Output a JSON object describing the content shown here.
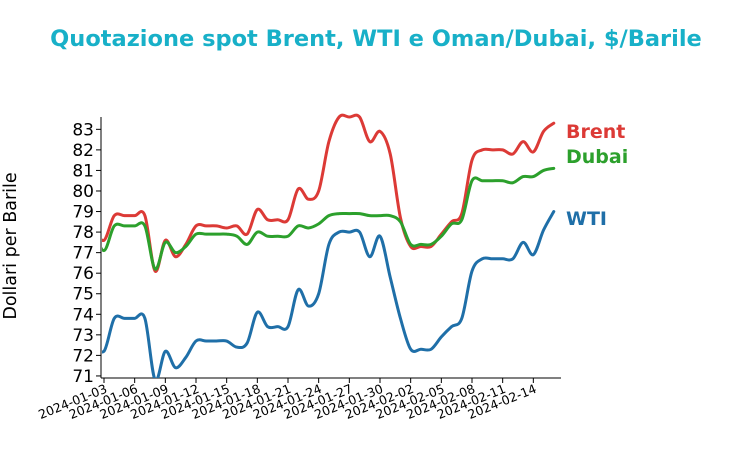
{
  "chart_data": {
    "type": "line",
    "title": "Quotazione spot Brent, WTI e Oman/Dubai, $/Barile",
    "xlabel": "",
    "ylabel": "Dollari per Barile",
    "ylim": [
      70.9,
      83.6
    ],
    "yticks": [
      71,
      72,
      73,
      74,
      75,
      76,
      77,
      78,
      79,
      80,
      81,
      82,
      83
    ],
    "xlim": [
      "2024-01-03",
      "2024-02-17"
    ],
    "xticks": [
      "2024-01-03",
      "2024-01-06",
      "2024-01-09",
      "2024-01-12",
      "2024-01-15",
      "2024-01-18",
      "2024-01-21",
      "2024-01-24",
      "2024-01-27",
      "2024-01-30",
      "2024-02-02",
      "2024-02-05",
      "2024-02-08",
      "2024-02-11",
      "2024-02-14"
    ],
    "grid": false,
    "legend": "inline labels at right end of each line",
    "series": [
      {
        "name": "Brent",
        "color": "#dc3a36",
        "points": [
          [
            "2024-01-02",
            78.2
          ],
          [
            "2024-01-03",
            77.6
          ],
          [
            "2024-01-04",
            78.8
          ],
          [
            "2024-01-05",
            78.8
          ],
          [
            "2024-01-06",
            78.8
          ],
          [
            "2024-01-07",
            78.8
          ],
          [
            "2024-01-08",
            76.1
          ],
          [
            "2024-01-09",
            77.6
          ],
          [
            "2024-01-10",
            76.8
          ],
          [
            "2024-01-11",
            77.4
          ],
          [
            "2024-01-12",
            78.3
          ],
          [
            "2024-01-13",
            78.3
          ],
          [
            "2024-01-14",
            78.3
          ],
          [
            "2024-01-15",
            78.2
          ],
          [
            "2024-01-16",
            78.3
          ],
          [
            "2024-01-17",
            77.9
          ],
          [
            "2024-01-18",
            79.1
          ],
          [
            "2024-01-19",
            78.6
          ],
          [
            "2024-01-20",
            78.6
          ],
          [
            "2024-01-21",
            78.6
          ],
          [
            "2024-01-22",
            80.1
          ],
          [
            "2024-01-23",
            79.6
          ],
          [
            "2024-01-24",
            80.0
          ],
          [
            "2024-01-25",
            82.4
          ],
          [
            "2024-01-26",
            83.6
          ],
          [
            "2024-01-27",
            83.6
          ],
          [
            "2024-01-28",
            83.6
          ],
          [
            "2024-01-29",
            82.4
          ],
          [
            "2024-01-30",
            82.9
          ],
          [
            "2024-01-31",
            81.8
          ],
          [
            "2024-02-01",
            78.7
          ],
          [
            "2024-02-02",
            77.3
          ],
          [
            "2024-02-03",
            77.3
          ],
          [
            "2024-02-04",
            77.3
          ],
          [
            "2024-02-05",
            77.9
          ],
          [
            "2024-02-06",
            78.5
          ],
          [
            "2024-02-07",
            78.9
          ],
          [
            "2024-02-08",
            81.5
          ],
          [
            "2024-02-09",
            82.0
          ],
          [
            "2024-02-10",
            82.0
          ],
          [
            "2024-02-11",
            82.0
          ],
          [
            "2024-02-12",
            81.8
          ],
          [
            "2024-02-13",
            82.4
          ],
          [
            "2024-02-14",
            81.9
          ],
          [
            "2024-02-15",
            82.9
          ],
          [
            "2024-02-16",
            83.3
          ]
        ]
      },
      {
        "name": "Dubai",
        "color": "#2ca02c",
        "points": [
          [
            "2024-01-02",
            78.1
          ],
          [
            "2024-01-03",
            77.1
          ],
          [
            "2024-01-04",
            78.3
          ],
          [
            "2024-01-05",
            78.3
          ],
          [
            "2024-01-06",
            78.3
          ],
          [
            "2024-01-07",
            78.3
          ],
          [
            "2024-01-08",
            76.2
          ],
          [
            "2024-01-09",
            77.5
          ],
          [
            "2024-01-10",
            77.0
          ],
          [
            "2024-01-11",
            77.3
          ],
          [
            "2024-01-12",
            77.9
          ],
          [
            "2024-01-13",
            77.9
          ],
          [
            "2024-01-14",
            77.9
          ],
          [
            "2024-01-15",
            77.9
          ],
          [
            "2024-01-16",
            77.8
          ],
          [
            "2024-01-17",
            77.4
          ],
          [
            "2024-01-18",
            78.0
          ],
          [
            "2024-01-19",
            77.8
          ],
          [
            "2024-01-20",
            77.8
          ],
          [
            "2024-01-21",
            77.8
          ],
          [
            "2024-01-22",
            78.3
          ],
          [
            "2024-01-23",
            78.2
          ],
          [
            "2024-01-24",
            78.4
          ],
          [
            "2024-01-25",
            78.8
          ],
          [
            "2024-01-26",
            78.9
          ],
          [
            "2024-01-27",
            78.9
          ],
          [
            "2024-01-28",
            78.9
          ],
          [
            "2024-01-29",
            78.8
          ],
          [
            "2024-01-30",
            78.8
          ],
          [
            "2024-01-31",
            78.8
          ],
          [
            "2024-02-01",
            78.5
          ],
          [
            "2024-02-02",
            77.4
          ],
          [
            "2024-02-03",
            77.4
          ],
          [
            "2024-02-04",
            77.4
          ],
          [
            "2024-02-05",
            77.8
          ],
          [
            "2024-02-06",
            78.4
          ],
          [
            "2024-02-07",
            78.6
          ],
          [
            "2024-02-08",
            80.5
          ],
          [
            "2024-02-09",
            80.5
          ],
          [
            "2024-02-10",
            80.5
          ],
          [
            "2024-02-11",
            80.5
          ],
          [
            "2024-02-12",
            80.4
          ],
          [
            "2024-02-13",
            80.7
          ],
          [
            "2024-02-14",
            80.7
          ],
          [
            "2024-02-15",
            81.0
          ],
          [
            "2024-02-16",
            81.1
          ]
        ]
      },
      {
        "name": "WTI",
        "color": "#1f6fa8",
        "points": [
          [
            "2024-01-02",
            72.7
          ],
          [
            "2024-01-03",
            72.2
          ],
          [
            "2024-01-04",
            73.8
          ],
          [
            "2024-01-05",
            73.8
          ],
          [
            "2024-01-06",
            73.8
          ],
          [
            "2024-01-07",
            73.8
          ],
          [
            "2024-01-08",
            70.8
          ],
          [
            "2024-01-09",
            72.2
          ],
          [
            "2024-01-10",
            71.4
          ],
          [
            "2024-01-11",
            71.9
          ],
          [
            "2024-01-12",
            72.7
          ],
          [
            "2024-01-13",
            72.7
          ],
          [
            "2024-01-14",
            72.7
          ],
          [
            "2024-01-15",
            72.7
          ],
          [
            "2024-01-16",
            72.4
          ],
          [
            "2024-01-17",
            72.6
          ],
          [
            "2024-01-18",
            74.1
          ],
          [
            "2024-01-19",
            73.4
          ],
          [
            "2024-01-20",
            73.4
          ],
          [
            "2024-01-21",
            73.4
          ],
          [
            "2024-01-22",
            75.2
          ],
          [
            "2024-01-23",
            74.4
          ],
          [
            "2024-01-24",
            75.0
          ],
          [
            "2024-01-25",
            77.4
          ],
          [
            "2024-01-26",
            78.0
          ],
          [
            "2024-01-27",
            78.0
          ],
          [
            "2024-01-28",
            78.0
          ],
          [
            "2024-01-29",
            76.8
          ],
          [
            "2024-01-30",
            77.8
          ],
          [
            "2024-01-31",
            75.8
          ],
          [
            "2024-02-01",
            73.8
          ],
          [
            "2024-02-02",
            72.3
          ],
          [
            "2024-02-03",
            72.3
          ],
          [
            "2024-02-04",
            72.3
          ],
          [
            "2024-02-05",
            72.9
          ],
          [
            "2024-02-06",
            73.4
          ],
          [
            "2024-02-07",
            73.8
          ],
          [
            "2024-02-08",
            76.1
          ],
          [
            "2024-02-09",
            76.7
          ],
          [
            "2024-02-10",
            76.7
          ],
          [
            "2024-02-11",
            76.7
          ],
          [
            "2024-02-12",
            76.7
          ],
          [
            "2024-02-13",
            77.5
          ],
          [
            "2024-02-14",
            76.9
          ],
          [
            "2024-02-15",
            78.1
          ],
          [
            "2024-02-16",
            79.0
          ]
        ]
      }
    ]
  },
  "colors": {
    "title": "#18b0c8"
  }
}
